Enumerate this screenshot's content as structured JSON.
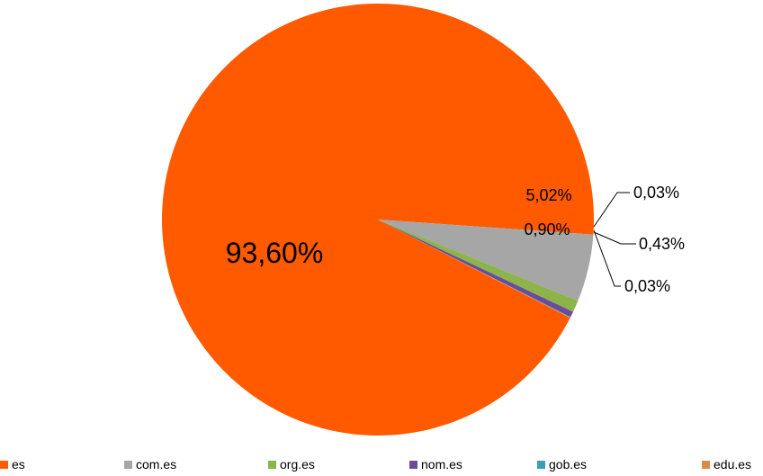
{
  "chart_data": {
    "type": "pie",
    "slices": [
      {
        "label": "es",
        "value": 93.6,
        "display": "93,60%",
        "color": "#FF5A00"
      },
      {
        "label": "com.es",
        "value": 5.02,
        "display": "5,02%",
        "color": "#A6A6A6"
      },
      {
        "label": "org.es",
        "value": 0.9,
        "display": "0,90%",
        "color": "#8CB44A"
      },
      {
        "label": "nom.es",
        "value": 0.43,
        "display": "0,43%",
        "color": "#6B4C9A"
      },
      {
        "label": "gob.es",
        "value": 0.03,
        "display": "0,03%",
        "color": "#3A9FB5"
      },
      {
        "label": "edu.es",
        "value": 0.03,
        "display": "0,03%",
        "color": "#D98B4A"
      }
    ],
    "legend_position": "bottom"
  }
}
